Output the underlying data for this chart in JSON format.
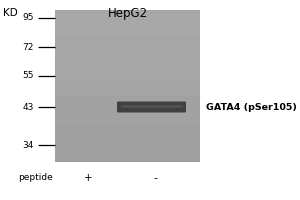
{
  "title": "HepG2",
  "label_kd": "KD",
  "mw_markers": [
    95,
    72,
    55,
    43,
    34
  ],
  "band_label": "GATA4 (pSer105)",
  "band_color": "#3a3a3a",
  "blot_bg_color": "#a0a0a0",
  "bg_color": "#ffffff",
  "peptide_label": "peptide",
  "plus_label": "+",
  "minus_label": "-"
}
